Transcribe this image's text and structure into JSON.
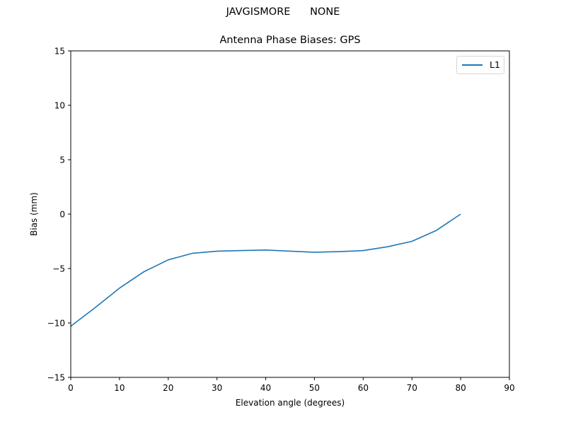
{
  "figure": {
    "suptitle": "JAVGISMORE      NONE",
    "title": "Antenna Phase Biases: GPS"
  },
  "chart_data": {
    "type": "line",
    "title": "Antenna Phase Biases: GPS",
    "suptitle": "JAVGISMORE      NONE",
    "xlabel": "Elevation angle (degrees)",
    "ylabel": "Bias (mm)",
    "xlim": [
      0,
      90
    ],
    "ylim": [
      -15,
      15
    ],
    "xticks": [
      0,
      10,
      20,
      30,
      40,
      50,
      60,
      70,
      80,
      90
    ],
    "yticks": [
      -15,
      -10,
      -5,
      0,
      5,
      10,
      15
    ],
    "grid": false,
    "legend_position": "upper right",
    "x": [
      0,
      5,
      10,
      15,
      20,
      25,
      30,
      35,
      40,
      45,
      50,
      55,
      60,
      65,
      70,
      75,
      80
    ],
    "series": [
      {
        "name": "L1",
        "color": "#1f77b4",
        "values": [
          -10.3,
          -8.6,
          -6.8,
          -5.3,
          -4.2,
          -3.6,
          -3.4,
          -3.35,
          -3.3,
          -3.4,
          -3.5,
          -3.45,
          -3.35,
          -3.0,
          -2.5,
          -1.5,
          0.0
        ]
      }
    ]
  },
  "legend": {
    "items": [
      {
        "label": "L1",
        "color": "#1f77b4"
      }
    ]
  }
}
